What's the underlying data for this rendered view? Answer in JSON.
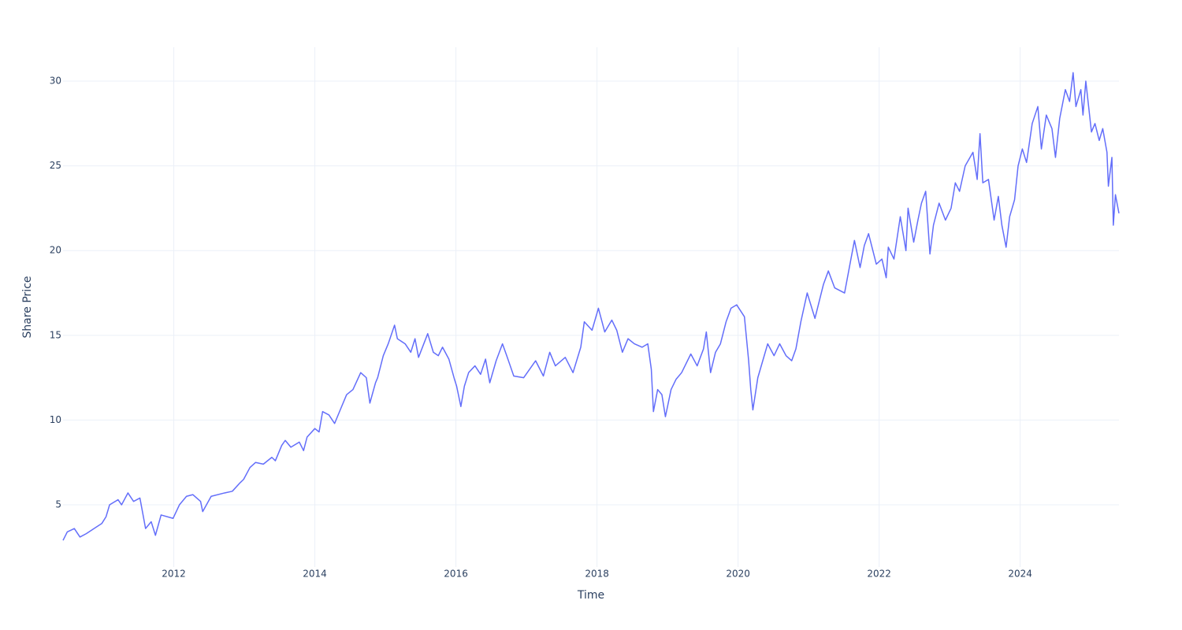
{
  "chart_data": {
    "type": "line",
    "x_label": "Time",
    "y_label": "Share Price",
    "x": [
      2010.43,
      2010.49,
      2010.59,
      2010.67,
      2010.76,
      2010.87,
      2010.98,
      2011.04,
      2011.09,
      2011.21,
      2011.26,
      2011.35,
      2011.43,
      2011.52,
      2011.6,
      2011.68,
      2011.74,
      2011.82,
      2011.99,
      2012.08,
      2012.18,
      2012.27,
      2012.38,
      2012.41,
      2012.53,
      2012.72,
      2012.83,
      2012.94,
      2012.99,
      2013.08,
      2013.16,
      2013.27,
      2013.39,
      2013.44,
      2013.53,
      2013.58,
      2013.66,
      2013.78,
      2013.84,
      2013.89,
      2014.0,
      2014.06,
      2014.11,
      2014.2,
      2014.28,
      2014.36,
      2014.45,
      2014.54,
      2014.65,
      2014.73,
      2014.78,
      2014.86,
      2014.89,
      2014.97,
      2015.04,
      2015.13,
      2015.17,
      2015.28,
      2015.36,
      2015.42,
      2015.47,
      2015.6,
      2015.68,
      2015.75,
      2015.81,
      2015.9,
      2015.98,
      2016.01,
      2016.07,
      2016.12,
      2016.18,
      2016.27,
      2016.35,
      2016.42,
      2016.48,
      2016.57,
      2016.66,
      2016.72,
      2016.77,
      2016.82,
      2016.96,
      2017.13,
      2017.24,
      2017.33,
      2017.41,
      2017.55,
      2017.66,
      2017.77,
      2017.82,
      2017.93,
      2018.02,
      2018.11,
      2018.21,
      2018.28,
      2018.36,
      2018.44,
      2018.53,
      2018.64,
      2018.72,
      2018.77,
      2018.8,
      2018.86,
      2018.92,
      2018.97,
      2019.05,
      2019.12,
      2019.2,
      2019.33,
      2019.42,
      2019.51,
      2019.55,
      2019.61,
      2019.68,
      2019.75,
      2019.83,
      2019.9,
      2019.98,
      2020.09,
      2020.15,
      2020.18,
      2020.21,
      2020.28,
      2020.35,
      2020.42,
      2020.51,
      2020.59,
      2020.68,
      2020.76,
      2020.82,
      2020.89,
      2020.98,
      2021.09,
      2021.21,
      2021.28,
      2021.37,
      2021.51,
      2021.6,
      2021.65,
      2021.73,
      2021.79,
      2021.85,
      2021.96,
      2022.04,
      2022.1,
      2022.13,
      2022.21,
      2022.3,
      2022.38,
      2022.41,
      2022.49,
      2022.55,
      2022.6,
      2022.66,
      2022.72,
      2022.77,
      2022.85,
      2022.94,
      2023.02,
      2023.08,
      2023.14,
      2023.22,
      2023.33,
      2023.39,
      2023.43,
      2023.47,
      2023.55,
      2023.63,
      2023.69,
      2023.74,
      2023.8,
      2023.85,
      2023.92,
      2023.97,
      2024.03,
      2024.09,
      2024.17,
      2024.25,
      2024.3,
      2024.37,
      2024.45,
      2024.5,
      2024.56,
      2024.64,
      2024.7,
      2024.75,
      2024.79,
      2024.86,
      2024.89,
      2024.93,
      2025.01,
      2025.06,
      2025.12,
      2025.17,
      2025.23,
      2025.25,
      2025.3,
      2025.32,
      2025.35,
      2025.4
    ],
    "values": [
      2.9,
      3.4,
      3.6,
      3.1,
      3.3,
      3.6,
      3.9,
      4.3,
      5.0,
      5.3,
      5.0,
      5.7,
      5.2,
      5.4,
      3.6,
      4.0,
      3.2,
      4.4,
      4.2,
      5.0,
      5.5,
      5.6,
      5.2,
      4.6,
      5.5,
      5.7,
      5.8,
      6.3,
      6.5,
      7.2,
      7.5,
      7.4,
      7.8,
      7.6,
      8.5,
      8.8,
      8.4,
      8.7,
      8.2,
      9.0,
      9.5,
      9.3,
      10.5,
      10.3,
      9.8,
      10.6,
      11.5,
      11.8,
      12.8,
      12.5,
      11.0,
      12.2,
      12.5,
      13.8,
      14.5,
      15.6,
      14.8,
      14.5,
      14.0,
      14.8,
      13.7,
      15.1,
      14.0,
      13.8,
      14.3,
      13.6,
      12.4,
      12.0,
      10.8,
      12.0,
      12.8,
      13.2,
      12.7,
      13.6,
      12.2,
      13.5,
      14.5,
      13.8,
      13.2,
      12.6,
      12.5,
      13.5,
      12.6,
      14.0,
      13.2,
      13.7,
      12.8,
      14.3,
      15.8,
      15.3,
      16.6,
      15.2,
      15.9,
      15.3,
      14.0,
      14.8,
      14.5,
      14.3,
      14.5,
      13.0,
      10.5,
      11.8,
      11.5,
      10.2,
      11.8,
      12.4,
      12.8,
      13.9,
      13.2,
      14.2,
      15.2,
      12.8,
      14.0,
      14.5,
      15.8,
      16.6,
      16.8,
      16.1,
      13.5,
      11.8,
      10.6,
      12.5,
      13.5,
      14.5,
      13.8,
      14.5,
      13.8,
      13.5,
      14.2,
      15.8,
      17.5,
      16.0,
      18.0,
      18.8,
      17.8,
      17.5,
      19.5,
      20.6,
      19.0,
      20.3,
      21.0,
      19.2,
      19.5,
      18.4,
      20.2,
      19.5,
      22.0,
      20.0,
      22.5,
      20.5,
      21.8,
      22.8,
      23.5,
      19.8,
      21.5,
      22.8,
      21.8,
      22.5,
      24.0,
      23.5,
      25.0,
      25.8,
      24.2,
      26.9,
      24.0,
      24.2,
      21.8,
      23.2,
      21.5,
      20.2,
      22.0,
      23.0,
      25.0,
      26.0,
      25.2,
      27.5,
      28.5,
      26.0,
      28.0,
      27.2,
      25.5,
      27.8,
      29.5,
      28.8,
      30.5,
      28.5,
      29.5,
      28.0,
      30.0,
      27.0,
      27.5,
      26.5,
      27.2,
      25.8,
      23.8,
      25.5,
      21.5,
      23.3,
      22.2
    ],
    "color": "#636efa",
    "xlim": [
      2010.43,
      2025.4
    ],
    "xticks": [
      2012,
      2014,
      2016,
      2018,
      2020,
      2022,
      2024
    ],
    "ylim": [
      1.33,
      32.0
    ],
    "yticks": [
      5,
      10,
      15,
      20,
      25,
      30
    ],
    "grid": true
  }
}
